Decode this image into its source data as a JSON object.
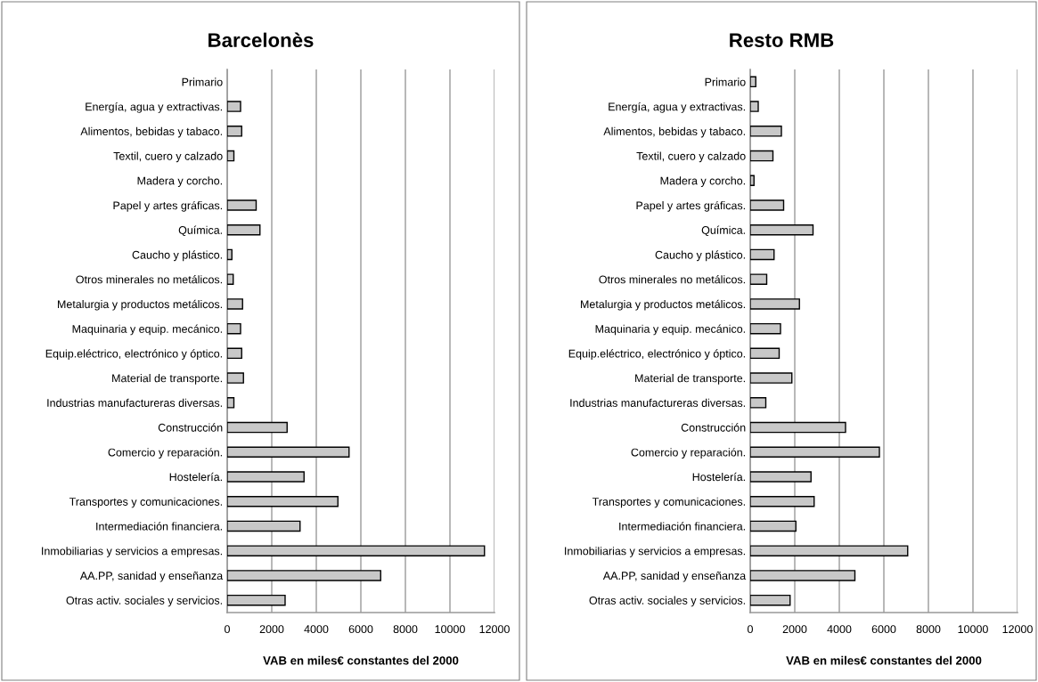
{
  "chart_data": [
    {
      "type": "bar",
      "orientation": "horizontal",
      "title": "Barcelonès",
      "xlabel": "VAB en miles€ constantes del 2000",
      "categories": [
        "Primario",
        "Energía, agua y extractivas.",
        "Alimentos, bebidas y tabaco.",
        "Textil, cuero y calzado",
        "Madera y corcho.",
        "Papel y artes gráficas.",
        "Química.",
        "Caucho y plástico.",
        "Otros minerales no metálicos.",
        "Metalurgia y productos metálicos.",
        "Maquinaria y equip. mecánico.",
        "Equip.eléctrico, electrónico y óptico.",
        "Material de transporte.",
        "Industrias manufactureras diversas.",
        "Construcción",
        "Comercio y reparación.",
        "Hostelería.",
        "Transportes y comunicaciones.",
        "Intermediación financiera.",
        "Inmobiliarias y servicios a empresas.",
        "AA.PP, sanidad y enseñanza",
        "Otras activ. sociales y servicios."
      ],
      "values": [
        null,
        600,
        650,
        300,
        null,
        1300,
        1470,
        210,
        270,
        690,
        600,
        650,
        730,
        300,
        2690,
        5470,
        3450,
        4970,
        3270,
        11550,
        6890,
        2600
      ],
      "color": "#c8c8c8",
      "xlim": [
        0,
        12000
      ],
      "xticks": [
        0,
        2000,
        4000,
        6000,
        8000,
        10000,
        12000
      ],
      "grid": "x"
    },
    {
      "type": "bar",
      "orientation": "horizontal",
      "title": "Resto RMB",
      "xlabel": "VAB en miles€ constantes del 2000",
      "categories": [
        "Primario",
        "Energía, agua y extractivas.",
        "Alimentos, bebidas y tabaco.",
        "Textil, cuero y calzado",
        "Madera y corcho.",
        "Papel y artes gráficas.",
        "Química.",
        "Caucho y plástico.",
        "Otros minerales no metálicos.",
        "Metalurgia y productos metálicos.",
        "Maquinaria y equip. mecánico.",
        "Equip.eléctrico, electrónico y óptico.",
        "Material de transporte.",
        "Industrias manufactureras diversas.",
        "Construcción",
        "Comercio y reparación.",
        "Hostelería.",
        "Transportes y comunicaciones.",
        "Intermediación financiera.",
        "Inmobiliarias y servicios a empresas.",
        "AA.PP, sanidad y enseñanza",
        "Otras activ. sociales y servicios."
      ],
      "values": [
        250,
        360,
        1400,
        1020,
        170,
        1500,
        2820,
        1070,
        740,
        2210,
        1360,
        1300,
        1870,
        700,
        4280,
        5800,
        2730,
        2870,
        2050,
        7070,
        4700,
        1790
      ],
      "color": "#c8c8c8",
      "xlim": [
        0,
        12000
      ],
      "xticks": [
        0,
        2000,
        4000,
        6000,
        8000,
        10000,
        12000
      ],
      "grid": "x"
    }
  ]
}
